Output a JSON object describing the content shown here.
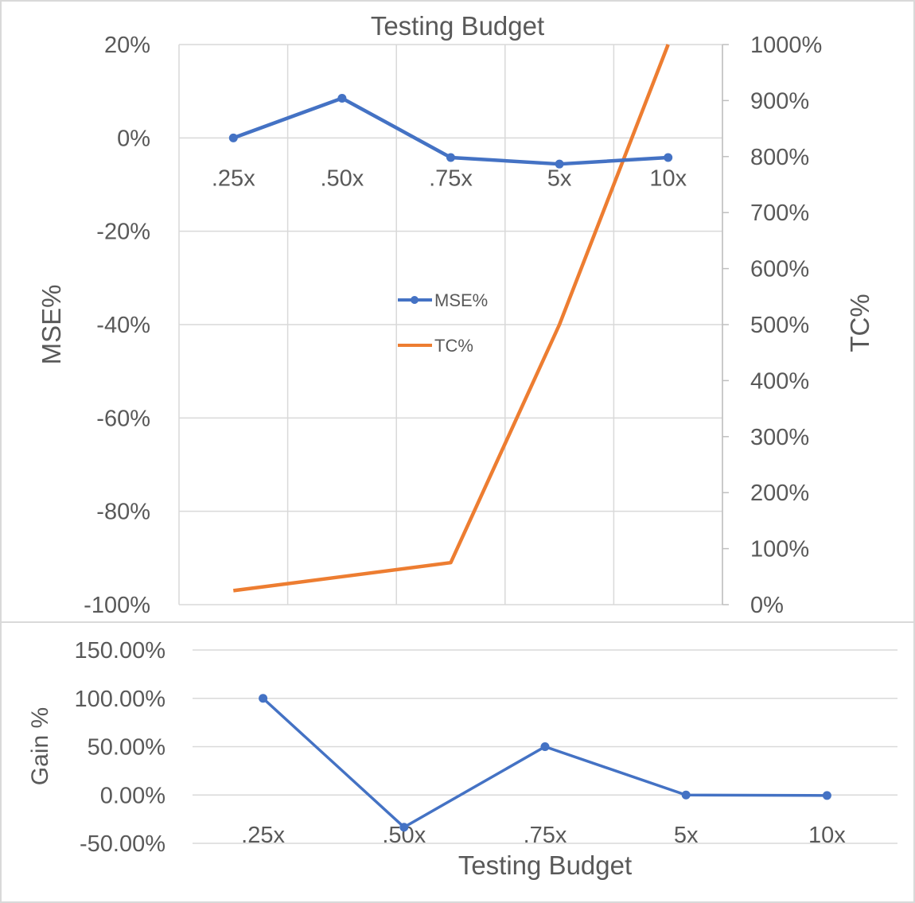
{
  "chart_data": [
    {
      "type": "line",
      "title": "Testing Budget",
      "xlabel": "",
      "ylabel": "MSE%",
      "y2label": "TC%",
      "categories": [
        ".25x",
        ".50x",
        ".75x",
        "5x",
        "10x"
      ],
      "y_ticks": [
        "20%",
        "0%",
        "-20%",
        "-40%",
        "-60%",
        "-80%",
        "-100%"
      ],
      "y2_ticks": [
        "1000%",
        "900%",
        "800%",
        "700%",
        "600%",
        "500%",
        "400%",
        "300%",
        "200%",
        "100%",
        "0%"
      ],
      "ylim": [
        -100,
        20
      ],
      "y2lim": [
        0,
        1000
      ],
      "legend_position": "center",
      "grid": true,
      "series": [
        {
          "name": "MSE%",
          "axis": "left",
          "color": "#4472C4",
          "markers": true,
          "values": [
            0,
            8.5,
            -4.2,
            -5.6,
            -4.2
          ]
        },
        {
          "name": "TC%",
          "axis": "right",
          "color": "#ED7D31",
          "markers": false,
          "values": [
            25,
            50,
            75,
            500,
            1000
          ]
        }
      ]
    },
    {
      "type": "line",
      "title": "",
      "xlabel": "Testing Budget",
      "ylabel": "Gain %",
      "categories": [
        ".25x",
        ".50x",
        ".75x",
        "5x",
        "10x"
      ],
      "y_ticks": [
        "150.00%",
        "100.00%",
        "50.00%",
        "0.00%",
        "-50.00%"
      ],
      "ylim": [
        -50,
        150
      ],
      "grid": true,
      "series": [
        {
          "color": "#4472C4",
          "markers": true,
          "values": [
            100,
            -33.3,
            50,
            0,
            -0.5
          ]
        }
      ]
    }
  ]
}
